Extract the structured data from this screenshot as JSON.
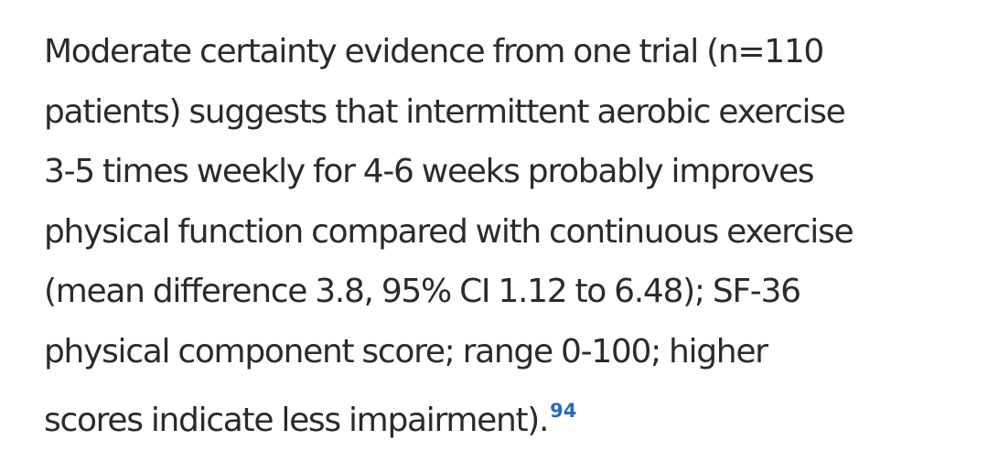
{
  "paragraph": {
    "lines": [
      "Moderate certainty evidence from one trial (n=110",
      "patients) suggests that intermittent aerobic exercise",
      "3-5 times weekly for 4-6 weeks probably improves",
      "physical function compared with continuous exercise",
      "(mean difference 3.8, 95% CI 1.12 to 6.48); SF-36",
      "physical component score; range 0-100; higher",
      "scores indicate less impairment)."
    ],
    "citation": "94"
  },
  "colors": {
    "text": "#2b2b2b",
    "citation_link": "#2a6bb5",
    "background": "#ffffff"
  }
}
